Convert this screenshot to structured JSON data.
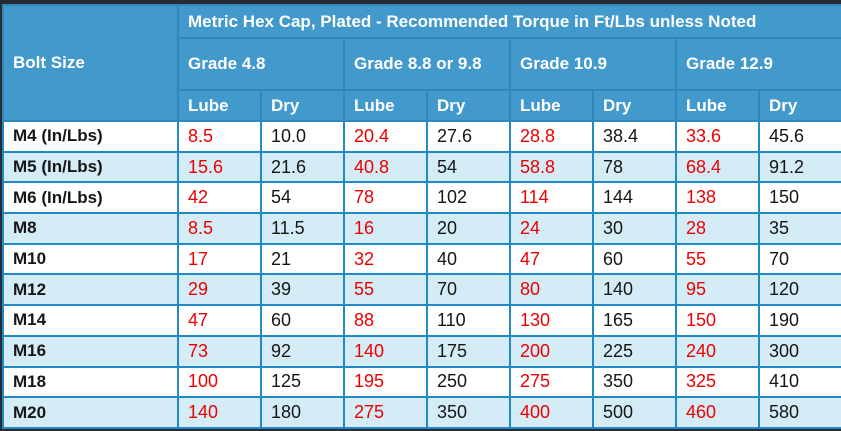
{
  "colors": {
    "header_bg": "#4299cb",
    "header_border": "#2f87ba",
    "border": "#2189c4",
    "outer_frame": "#252c34",
    "stripe_bg": "#d3ecf5",
    "row_bg": "#ffffff",
    "lube_text": "#ee0000",
    "dry_text": "#161616",
    "header_text": "#ffffff"
  },
  "chart_data": {
    "type": "table",
    "title": "Metric Hex Cap, Plated - Recommended Torque in Ft/Lbs unless Noted",
    "corner_header": "Bolt Size",
    "grade_groups": [
      "Grade 4.8",
      "Grade 8.8 or 9.8",
      "Grade 10.9",
      "Grade 12.9"
    ],
    "sub_headers": [
      "Lube",
      "Dry"
    ],
    "rows": [
      {
        "bolt_size": "M4 (In/Lbs)",
        "values": [
          "8.5",
          "10.0",
          "20.4",
          "27.6",
          "28.8",
          "38.4",
          "33.6",
          "45.6"
        ]
      },
      {
        "bolt_size": "M5 (In/Lbs)",
        "values": [
          "15.6",
          "21.6",
          "40.8",
          "54",
          "58.8",
          "78",
          "68.4",
          "91.2"
        ]
      },
      {
        "bolt_size": "M6 (In/Lbs)",
        "values": [
          "42",
          "54",
          "78",
          "102",
          "114",
          "144",
          "138",
          "150"
        ]
      },
      {
        "bolt_size": "M8",
        "values": [
          "8.5",
          "11.5",
          "16",
          "20",
          "24",
          "30",
          "28",
          "35"
        ]
      },
      {
        "bolt_size": "M10",
        "values": [
          "17",
          "21",
          "32",
          "40",
          "47",
          "60",
          "55",
          "70"
        ]
      },
      {
        "bolt_size": "M12",
        "values": [
          "29",
          "39",
          "55",
          "70",
          "80",
          "140",
          "95",
          "120"
        ]
      },
      {
        "bolt_size": "M14",
        "values": [
          "47",
          "60",
          "88",
          "110",
          "130",
          "165",
          "150",
          "190"
        ]
      },
      {
        "bolt_size": "M16",
        "values": [
          "73",
          "92",
          "140",
          "175",
          "200",
          "225",
          "240",
          "300"
        ]
      },
      {
        "bolt_size": "M18",
        "values": [
          "100",
          "125",
          "195",
          "250",
          "275",
          "350",
          "325",
          "410"
        ]
      },
      {
        "bolt_size": "M20",
        "values": [
          "140",
          "180",
          "275",
          "350",
          "400",
          "500",
          "460",
          "580"
        ]
      }
    ],
    "value_color_legend": {
      "lube_columns": "red",
      "dry_columns": "black"
    },
    "layout_hints": {
      "striped_rows": true,
      "stripe_pattern": "alternating starting white",
      "header_rows": 3
    }
  }
}
